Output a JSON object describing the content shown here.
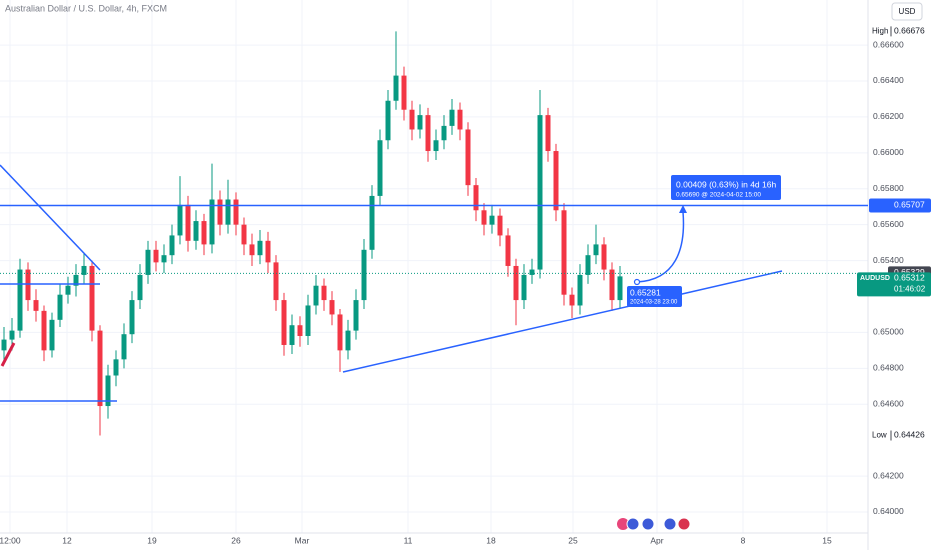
{
  "chart_data": {
    "type": "candlestick",
    "title": "Australian Dollar / U.S. Dollar, 4h, FXCM",
    "currency": "USD",
    "up_color": "#089981",
    "down_color": "#f23645",
    "ylim": [
      0.63883,
      0.66851
    ],
    "yticks": [
      {
        "value": 0.666,
        "label": "0.66600"
      },
      {
        "value": 0.664,
        "label": "0.66400"
      },
      {
        "value": 0.662,
        "label": "0.66200"
      },
      {
        "value": 0.66,
        "label": "0.66000"
      },
      {
        "value": 0.658,
        "label": "0.65800"
      },
      {
        "value": 0.656,
        "label": "0.65600"
      },
      {
        "value": 0.654,
        "label": "0.65400"
      },
      {
        "value": 0.65,
        "label": "0.65000"
      },
      {
        "value": 0.648,
        "label": "0.64800"
      },
      {
        "value": 0.646,
        "label": "0.64600"
      },
      {
        "value": 0.642,
        "label": "0.64200"
      },
      {
        "value": 0.64,
        "label": "0.64000"
      }
    ],
    "xlim": [
      -0.5,
      108
    ],
    "xticks": [
      {
        "value": 0.75,
        "label": "12:00"
      },
      {
        "value": 7.875,
        "label": "12"
      },
      {
        "value": 18.5,
        "label": "19"
      },
      {
        "value": 29,
        "label": "26"
      },
      {
        "value": 37.25,
        "label": "Mar"
      },
      {
        "value": 50.5,
        "label": "11"
      },
      {
        "value": 60.875,
        "label": "18"
      },
      {
        "value": 71.125,
        "label": "25"
      },
      {
        "value": 81.625,
        "label": "Apr"
      },
      {
        "value": 92.375,
        "label": "8"
      },
      {
        "value": 102.875,
        "label": "15"
      }
    ],
    "open": [
      0.649,
      0.6496,
      0.6501,
      0.6535,
      0.6518,
      0.6512,
      0.649,
      0.6507,
      0.6521,
      0.6526,
      0.6532,
      0.6537,
      0.6501,
      0.6459,
      0.6476,
      0.6485,
      0.6499,
      0.6518,
      0.6532,
      0.6546,
      0.6539,
      0.6543,
      0.6554,
      0.6571,
      0.6551,
      0.6562,
      0.6549,
      0.6574,
      0.656,
      0.6574,
      0.656,
      0.6549,
      0.6543,
      0.6551,
      0.6539,
      0.6518,
      0.6493,
      0.6504,
      0.6498,
      0.6515,
      0.6526,
      0.6518,
      0.651,
      0.649,
      0.6501,
      0.6518,
      0.6546,
      0.6576,
      0.6607,
      0.6629,
      0.6643,
      0.6624,
      0.6613,
      0.6621,
      0.6601,
      0.6607,
      0.6615,
      0.6624,
      0.6613,
      0.6582,
      0.6568,
      0.656,
      0.6565,
      0.6554,
      0.6537,
      0.6518,
      0.6532,
      0.6535,
      0.6621,
      0.6601,
      0.6568,
      0.6521,
      0.6515,
      0.6532,
      0.6543,
      0.6549,
      0.6535,
      0.6518
    ],
    "high": [
      0.6503,
      0.6508,
      0.6541,
      0.6539,
      0.6524,
      0.6515,
      0.6511,
      0.6527,
      0.6531,
      0.6538,
      0.6544,
      0.654,
      0.6504,
      0.6482,
      0.649,
      0.6505,
      0.6523,
      0.6538,
      0.6551,
      0.6551,
      0.6549,
      0.656,
      0.6587,
      0.6576,
      0.6568,
      0.6566,
      0.6594,
      0.6579,
      0.6585,
      0.6578,
      0.6564,
      0.6555,
      0.6557,
      0.6556,
      0.6543,
      0.6522,
      0.651,
      0.6509,
      0.6521,
      0.6532,
      0.653,
      0.6523,
      0.6513,
      0.6507,
      0.6524,
      0.6552,
      0.6582,
      0.6613,
      0.6635,
      0.66676,
      0.6648,
      0.6629,
      0.6627,
      0.6625,
      0.6613,
      0.6621,
      0.663,
      0.6628,
      0.6617,
      0.6586,
      0.6572,
      0.6571,
      0.6569,
      0.6558,
      0.6541,
      0.6538,
      0.6541,
      0.6635,
      0.6625,
      0.6605,
      0.6572,
      0.6525,
      0.6538,
      0.6549,
      0.656,
      0.6553,
      0.6539,
      0.6537
    ],
    "low": [
      0.6484,
      0.649,
      0.6497,
      0.6512,
      0.6506,
      0.6484,
      0.6486,
      0.6503,
      0.6516,
      0.652,
      0.6527,
      0.6495,
      0.64426,
      0.6452,
      0.647,
      0.648,
      0.6494,
      0.6513,
      0.6527,
      0.6534,
      0.6533,
      0.6538,
      0.6549,
      0.6545,
      0.6546,
      0.6543,
      0.6544,
      0.6554,
      0.6555,
      0.6554,
      0.6543,
      0.6537,
      0.6538,
      0.6533,
      0.6512,
      0.6487,
      0.6488,
      0.6492,
      0.6493,
      0.651,
      0.6512,
      0.6504,
      0.6478,
      0.6485,
      0.6496,
      0.6513,
      0.6541,
      0.6571,
      0.6602,
      0.6624,
      0.6618,
      0.6607,
      0.6608,
      0.6595,
      0.6596,
      0.6602,
      0.661,
      0.6607,
      0.6576,
      0.6562,
      0.6554,
      0.6555,
      0.6548,
      0.6531,
      0.6504,
      0.6513,
      0.6527,
      0.653,
      0.6595,
      0.6562,
      0.6515,
      0.6508,
      0.651,
      0.6527,
      0.6538,
      0.6529,
      0.6512,
      0.6513
    ],
    "close": [
      0.6496,
      0.6501,
      0.6535,
      0.6518,
      0.6512,
      0.649,
      0.6507,
      0.6521,
      0.6526,
      0.6532,
      0.6537,
      0.6501,
      0.6459,
      0.6476,
      0.6485,
      0.6499,
      0.6518,
      0.6532,
      0.6546,
      0.6539,
      0.6543,
      0.6554,
      0.6571,
      0.6551,
      0.6562,
      0.6549,
      0.6574,
      0.656,
      0.6574,
      0.656,
      0.6549,
      0.6543,
      0.6551,
      0.6539,
      0.6518,
      0.6493,
      0.6504,
      0.6498,
      0.6515,
      0.6526,
      0.6518,
      0.651,
      0.649,
      0.6501,
      0.6518,
      0.6546,
      0.6576,
      0.6607,
      0.6629,
      0.6643,
      0.6624,
      0.6613,
      0.6621,
      0.6601,
      0.6607,
      0.6615,
      0.6624,
      0.6613,
      0.6582,
      0.6568,
      0.656,
      0.6565,
      0.6554,
      0.6537,
      0.6518,
      0.6532,
      0.6535,
      0.6621,
      0.6601,
      0.6568,
      0.6521,
      0.6515,
      0.6532,
      0.6543,
      0.6549,
      0.6535,
      0.6518,
      0.65312
    ],
    "high_badge": {
      "label": "High",
      "value": 0.66676
    },
    "low_badge": {
      "label": "Low",
      "value": 0.64426
    },
    "horizontal_line": {
      "value": 0.65707,
      "color": "#2962ff"
    },
    "previous_close": 0.65329,
    "last_price": {
      "label": "AUDUSD",
      "value": 0.65312,
      "countdown": "01:46:02"
    },
    "projection": {
      "change": "0.00409 (0.63%) in 4d 16h",
      "target": "0.65690 @ 2024-04-02  15:00"
    },
    "anchor": {
      "value": 0.65281,
      "time": "2024-03-28 23:00"
    }
  }
}
